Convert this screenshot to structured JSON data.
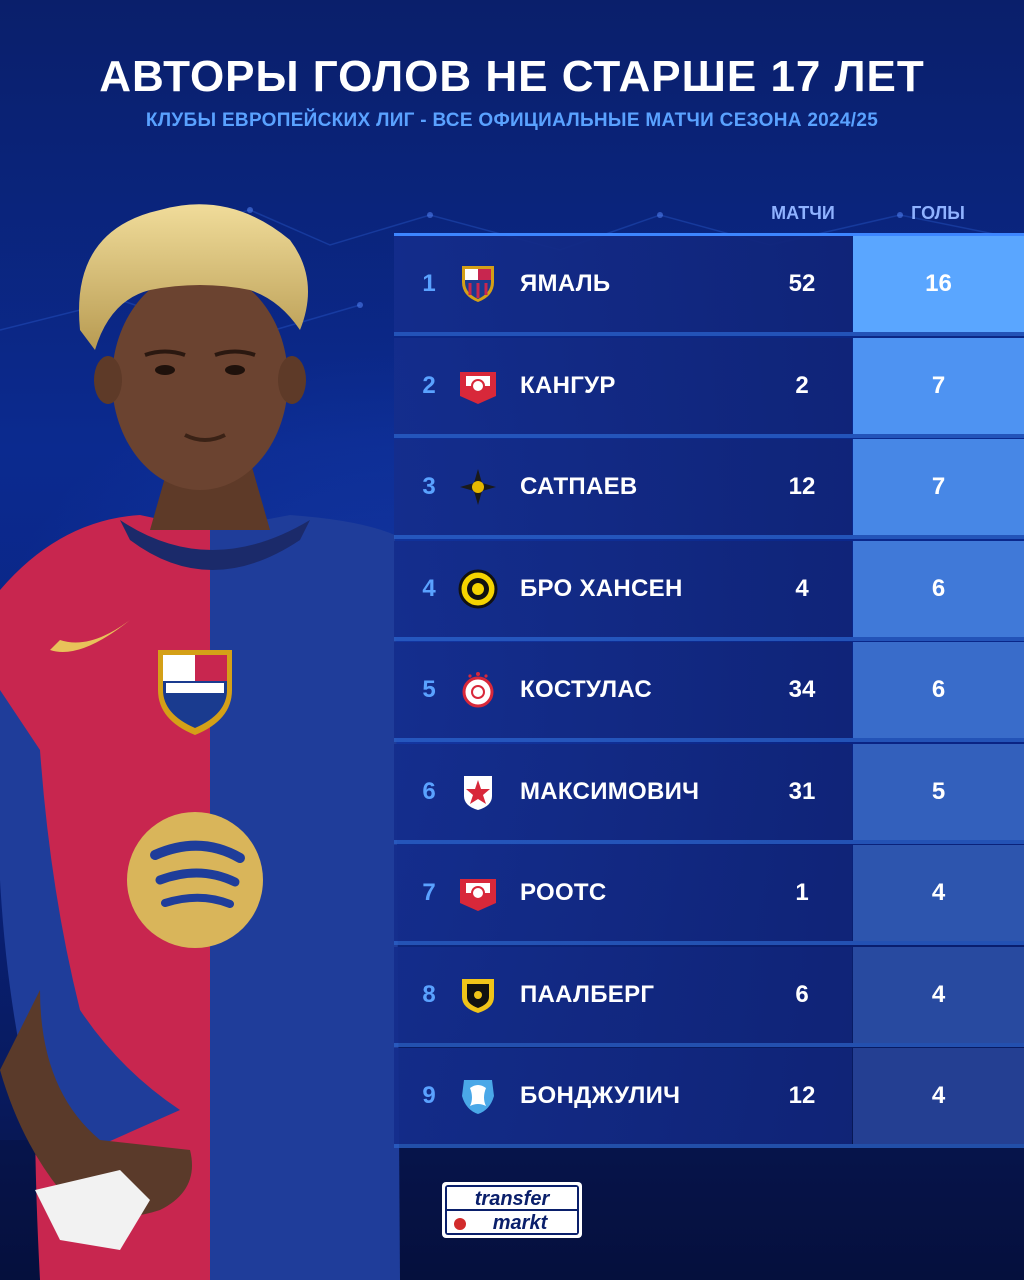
{
  "header": {
    "title": "АВТОРЫ ГОЛОВ НЕ СТАРШЕ 17 ЛЕТ",
    "subtitle": "КЛУБЫ ЕВРОПЕЙСКИХ ЛИГ - ВСЕ ОФИЦИАЛЬНЫЕ МАТЧИ СЕЗОНА 2024/25"
  },
  "columns": {
    "matches": "МАТЧИ",
    "goals": "ГОЛЫ"
  },
  "chart_data": {
    "type": "table",
    "columns": [
      "МАТЧИ",
      "ГОЛЫ"
    ],
    "rows": [
      {
        "rank": "1",
        "player": "ЯМАЛЬ",
        "club_icon": "barcelona-crest-icon",
        "matches": 52,
        "goals": 16
      },
      {
        "rank": "2",
        "player": "КАНГУР",
        "club_icon": "red-white-shield-icon",
        "matches": 2,
        "goals": 7
      },
      {
        "rank": "3",
        "player": "САТПАЕВ",
        "club_icon": "kairat-star-icon",
        "matches": 12,
        "goals": 7
      },
      {
        "rank": "4",
        "player": "БРО ХАНСЕН",
        "club_icon": "bodo-glimt-icon",
        "matches": 4,
        "goals": 6
      },
      {
        "rank": "5",
        "player": "КОСТУЛАС",
        "club_icon": "olympiacos-icon",
        "matches": 34,
        "goals": 6
      },
      {
        "rank": "6",
        "player": "МАКСИМОВИЧ",
        "club_icon": "red-star-icon",
        "matches": 31,
        "goals": 5
      },
      {
        "rank": "7",
        "player": "РООТС",
        "club_icon": "red-white-shield-icon",
        "matches": 1,
        "goals": 4
      },
      {
        "rank": "8",
        "player": "ПААЛБЕРГ",
        "club_icon": "black-yellow-shield-icon",
        "matches": 6,
        "goals": 4
      },
      {
        "rank": "9",
        "player": "БОНДЖУЛИЧ",
        "club_icon": "blue-white-crest-icon",
        "matches": 12,
        "goals": 4
      }
    ]
  },
  "colors": {
    "accent": "#5aa2ff",
    "goals_gradient_top": "#5aa6ff",
    "goals_gradient_bottom": "#2744a8"
  },
  "brand": {
    "line1": "transfer",
    "line2": "markt"
  }
}
